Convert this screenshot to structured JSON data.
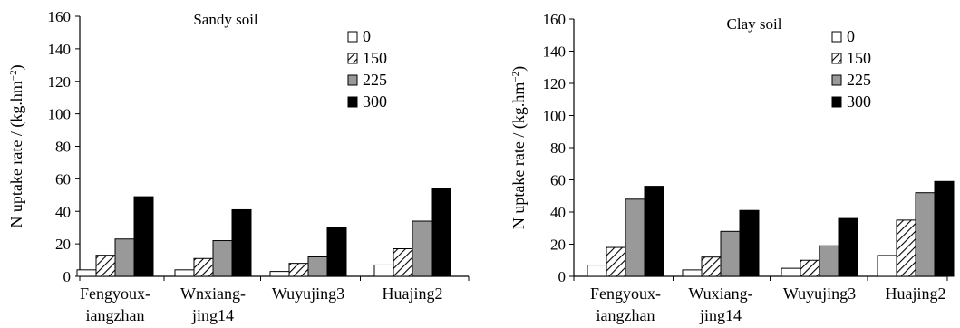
{
  "chart_data": [
    {
      "type": "bar",
      "title": "Sandy soil",
      "ylabel_main": "N uptake rate / (kg.hm",
      "ylabel_sup": "−2",
      "ylabel_close": ")",
      "ylim": [
        0,
        160
      ],
      "yticks": [
        0,
        20,
        40,
        60,
        80,
        100,
        120,
        140,
        160
      ],
      "categories": [
        [
          "Fengyoux-",
          "iangzhan"
        ],
        [
          "Wnxiang-",
          "jing14"
        ],
        [
          "Wuyujing3"
        ],
        [
          "Huajing2"
        ]
      ],
      "series": [
        {
          "name": "0",
          "style": "white",
          "values": [
            4,
            4,
            3,
            7
          ]
        },
        {
          "name": "150",
          "style": "hatch",
          "values": [
            13,
            11,
            8,
            17
          ]
        },
        {
          "name": "225",
          "style": "gray",
          "values": [
            23,
            22,
            12,
            34
          ]
        },
        {
          "name": "300",
          "style": "black",
          "values": [
            49,
            41,
            30,
            54
          ]
        }
      ],
      "legend_placement": "top-right",
      "grid": false
    },
    {
      "type": "bar",
      "title": "Clay soil",
      "ylabel_main": "N uptake rate / (kg.hm",
      "ylabel_sup": "−2",
      "ylabel_close": ")",
      "ylim": [
        0,
        160
      ],
      "yticks": [
        0,
        20,
        40,
        60,
        80,
        100,
        120,
        140,
        160
      ],
      "categories": [
        [
          "Fengyoux-",
          "iangzhan"
        ],
        [
          "Wuxiang-",
          "jing14"
        ],
        [
          "Wuyujing3"
        ],
        [
          "Huajing2"
        ]
      ],
      "series": [
        {
          "name": "0",
          "style": "white",
          "values": [
            7,
            4,
            5,
            13
          ]
        },
        {
          "name": "150",
          "style": "hatch",
          "values": [
            18,
            12,
            10,
            35
          ]
        },
        {
          "name": "225",
          "style": "gray",
          "values": [
            48,
            28,
            19,
            52
          ]
        },
        {
          "name": "300",
          "style": "black",
          "values": [
            56,
            41,
            36,
            59
          ]
        }
      ],
      "legend_placement": "top-right",
      "grid": false
    }
  ],
  "colors": {
    "gray_fill": "#999999",
    "black_fill": "#000000",
    "white_fill": "#ffffff",
    "stroke": "#000000"
  }
}
